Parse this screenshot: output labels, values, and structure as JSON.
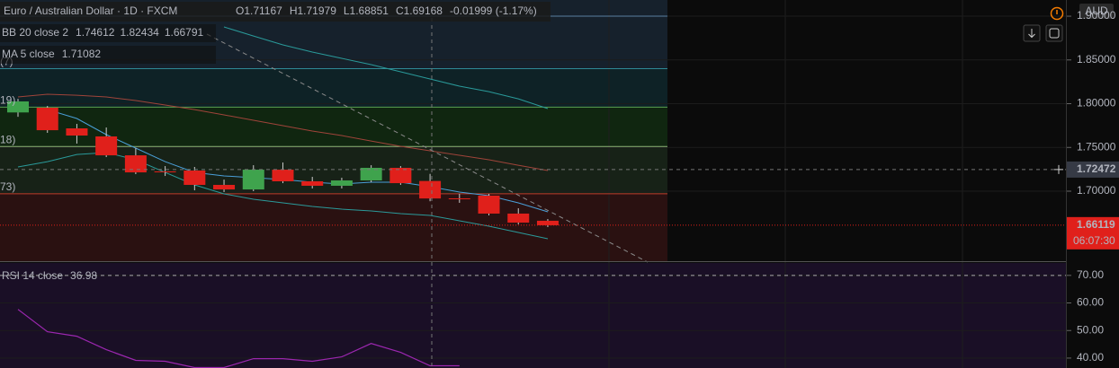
{
  "header": {
    "symbol": "Euro / Australian Dollar · 1D · FXCM",
    "items": [
      "O1.71167",
      "H1.71979",
      "L1.68851",
      "C1.69168",
      "-0.01999 (-1.17%)"
    ],
    "currency": "AUD"
  },
  "chart_data": [
    {
      "type": "candlestick",
      "categories": [
        null,
        null,
        null,
        null,
        null,
        null,
        null,
        null,
        null,
        null,
        null,
        null,
        null,
        null,
        null,
        null,
        null,
        null,
        null
      ],
      "open": [
        1.79,
        1.7954,
        1.7718,
        1.7626,
        1.741,
        1.7226,
        1.7236,
        1.7072,
        1.702,
        1.7246,
        1.7113,
        1.7062,
        1.7123,
        1.7267,
        1.71167,
        1.6918,
        1.6949,
        1.6744,
        1.6662
      ],
      "high": [
        1.8056,
        1.7974,
        1.7769,
        1.7728,
        1.7492,
        1.7287,
        1.7277,
        1.7133,
        1.7297,
        1.7328,
        1.7164,
        1.7154,
        1.7297,
        1.7287,
        1.71979,
        1.6969,
        1.6969,
        1.6805,
        1.6682
      ],
      "low": [
        1.785,
        1.7667,
        1.7544,
        1.739,
        1.7195,
        1.7174,
        1.701,
        1.699,
        1.7,
        1.7092,
        1.7031,
        1.7031,
        1.7103,
        1.7072,
        1.68851,
        1.6867,
        1.6723,
        1.6621,
        1.659
      ],
      "close": [
        1.8026,
        1.7697,
        1.7636,
        1.741,
        1.7215,
        1.722,
        1.7072,
        1.702,
        1.7246,
        1.7113,
        1.7062,
        1.7123,
        1.7267,
        1.7092,
        1.69168,
        1.6913,
        1.6744,
        1.6641,
        1.6611
      ],
      "up_color": "#3fa34d",
      "down_color": "#e0201b",
      "overlays": [
        {
          "name": "BB 20 close 2",
          "readout": [
            "1.74612",
            "1.82434",
            "1.66791"
          ],
          "readout_colors": [
            "#c0392b",
            "#2aa3a3",
            "#2aa3a3"
          ],
          "lines": [
            {
              "color": "#a0443a",
              "values": [
                1.8077,
                1.8108,
                1.8097,
                1.8077,
                1.8036,
                1.7985,
                1.7933,
                1.7872,
                1.781,
                1.7749,
                1.7687,
                1.7636,
                1.7574,
                1.7513,
                1.7462,
                1.741,
                1.7359,
                1.7297,
                1.7236
              ]
            },
            {
              "color": "#2a9a9a",
              "values": [
                null,
                null,
                null,
                null,
                null,
                null,
                null,
                1.8877,
                1.8774,
                1.8672,
                1.859,
                1.8518,
                1.8446,
                1.8364,
                1.8282,
                1.82,
                1.8138,
                1.8056,
                1.7944
              ]
            },
            {
              "color": "#2a9a9a",
              "values": [
                1.7277,
                1.7338,
                1.742,
                1.7441,
                1.7359,
                1.7215,
                1.7072,
                1.6969,
                1.6908,
                1.6867,
                1.6826,
                1.6795,
                1.6774,
                1.6744,
                1.6723,
                1.6662,
                1.66,
                1.6528,
                1.6456
              ]
            }
          ]
        },
        {
          "name": "MA 5 close",
          "readout": [
            "1.71082"
          ],
          "readout_colors": [
            "#4a9fd8"
          ],
          "lines": [
            {
              "color": "#4a9fd8",
              "values": [
                null,
                1.7933,
                1.7831,
                1.7646,
                1.7492,
                1.7338,
                1.7215,
                1.7174,
                1.7154,
                1.7133,
                1.7103,
                1.7082,
                1.7103,
                1.7103,
                1.7051,
                1.699,
                1.6949,
                1.6867,
                1.6764
              ]
            }
          ]
        }
      ],
      "levels": [
        {
          "value": 1.9,
          "color": "#5b7fa0",
          "zone": "#16212c",
          "label": null
        },
        {
          "value": 1.84,
          "color": "#2f8a95",
          "zone": "#0e2226",
          "label": "(7)"
        },
        {
          "value": 1.796,
          "color": "#5aa050",
          "zone": "#102610",
          "label": "19)"
        },
        {
          "value": 1.751,
          "color": "#8fb878",
          "zone": "#172217",
          "label": "18)"
        },
        {
          "value": 1.697,
          "color": "#c0392b",
          "zone": "#2a1111",
          "label": "73)"
        }
      ],
      "ylim": [
        1.62,
        1.9185
      ],
      "yticks": [
        {
          "value": 1.9,
          "label": "1.90000"
        },
        {
          "value": 1.85,
          "label": "1.85000"
        },
        {
          "value": 1.8,
          "label": "1.80000"
        },
        {
          "value": 1.75,
          "label": "1.75000"
        },
        {
          "value": 1.7,
          "label": "1.70000"
        }
      ],
      "crosshair": 1.72472,
      "last_price": 1.66119,
      "countdown": "06:07:30"
    },
    {
      "type": "line",
      "series": [
        {
          "name": "RSI 14 close",
          "color": "#9c27b0",
          "readout": "36.98",
          "values": [
            57.66,
            49.55,
            47.92,
            43.05,
            39.16,
            38.83,
            36.56,
            36.56,
            39.8,
            39.8,
            38.83,
            40.45,
            45.3,
            42.08,
            37.2,
            37.2,
            null,
            null,
            null
          ]
        }
      ],
      "ylim": [
        36.4,
        74.5
      ],
      "yticks": [
        {
          "value": 70,
          "label": "70.00"
        },
        {
          "value": 60,
          "label": "60.00"
        },
        {
          "value": 50,
          "label": "50.00"
        },
        {
          "value": 40,
          "label": "40.00"
        }
      ],
      "levels": [
        70
      ]
    }
  ]
}
